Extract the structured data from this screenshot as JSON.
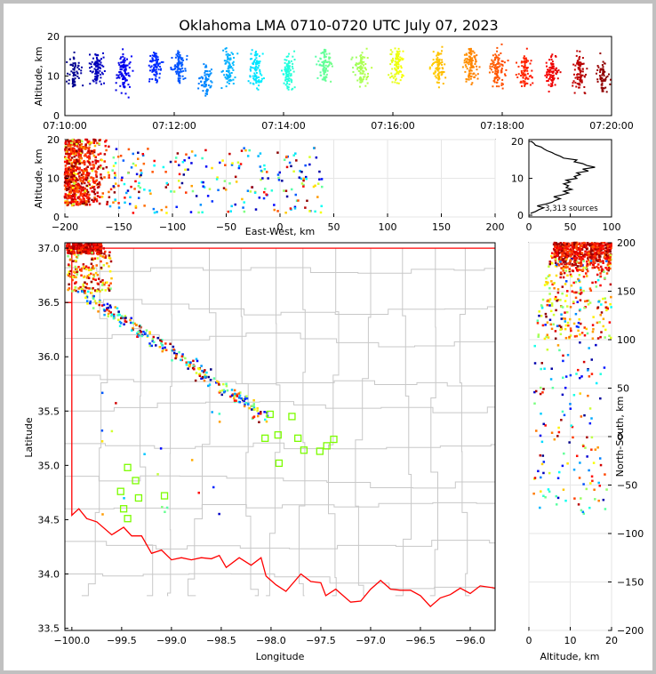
{
  "title": "Oklahoma LMA 0710-0720 UTC July 07, 2023",
  "colors": {
    "frame": "#c0c0c0",
    "background": "#ffffff",
    "border": "#ff0000",
    "counties": "#c8c8c8",
    "stations": "#7cfc00",
    "profile": "#000000"
  },
  "chart_data": [
    {
      "name": "altitude-vs-time",
      "type": "scatter",
      "xlim": [
        "07:10:00",
        "07:20:00"
      ],
      "xticks": [
        "07:10:00",
        "07:12:00",
        "07:14:00",
        "07:16:00",
        "07:18:00",
        "07:20:00"
      ],
      "ylim": [
        0,
        20
      ],
      "yticks": [
        "0",
        "10",
        "20"
      ],
      "ylabel": "Altitude, km",
      "colormap": "jet (by time)",
      "flashes": [
        {
          "t": "07:10:10",
          "alt": 11,
          "spread": 6,
          "n": 40
        },
        {
          "t": "07:10:35",
          "alt": 12,
          "spread": 5,
          "n": 65
        },
        {
          "t": "07:11:05",
          "alt": 11,
          "spread": 6,
          "n": 75
        },
        {
          "t": "07:11:40",
          "alt": 12,
          "spread": 5,
          "n": 55
        },
        {
          "t": "07:12:05",
          "alt": 12,
          "spread": 6,
          "n": 60
        },
        {
          "t": "07:12:35",
          "alt": 9,
          "spread": 5,
          "n": 40
        },
        {
          "t": "07:13:00",
          "alt": 12,
          "spread": 7,
          "n": 55
        },
        {
          "t": "07:13:30",
          "alt": 12,
          "spread": 6,
          "n": 60
        },
        {
          "t": "07:14:05",
          "alt": 11,
          "spread": 6,
          "n": 60
        },
        {
          "t": "07:14:45",
          "alt": 13,
          "spread": 6,
          "n": 65
        },
        {
          "t": "07:15:25",
          "alt": 12,
          "spread": 6,
          "n": 60
        },
        {
          "t": "07:16:05",
          "alt": 13,
          "spread": 6,
          "n": 70
        },
        {
          "t": "07:16:50",
          "alt": 12,
          "spread": 6,
          "n": 60
        },
        {
          "t": "07:17:25",
          "alt": 13,
          "spread": 6,
          "n": 80
        },
        {
          "t": "07:17:55",
          "alt": 12,
          "spread": 7,
          "n": 75
        },
        {
          "t": "07:18:25",
          "alt": 11,
          "spread": 6,
          "n": 55
        },
        {
          "t": "07:18:55",
          "alt": 11,
          "spread": 6,
          "n": 60
        },
        {
          "t": "07:19:25",
          "alt": 11,
          "spread": 6,
          "n": 60
        },
        {
          "t": "07:19:50",
          "alt": 10,
          "spread": 6,
          "n": 40
        }
      ]
    },
    {
      "name": "altitude-vs-east-west",
      "type": "scatter",
      "xlim": [
        -200,
        200
      ],
      "xticks": [
        "−200",
        "−150",
        "−100",
        "−50",
        "0",
        "50",
        "100",
        "150",
        "200"
      ],
      "ylim": [
        0,
        20
      ],
      "yticks": [
        "0",
        "10",
        "20"
      ],
      "xlabel": "East-West, km",
      "ylabel": "Altitude, km"
    },
    {
      "name": "altitude-histogram",
      "type": "line",
      "xlim": [
        0,
        100
      ],
      "xticks": [
        "0",
        "50",
        "100"
      ],
      "ylim": [
        0,
        20
      ],
      "yticks": [
        "0",
        "10",
        "20"
      ],
      "annotation": "3,313 sources",
      "alt": [
        0.5,
        1,
        1.5,
        2,
        2.5,
        3,
        3.5,
        4,
        4.5,
        5,
        5.5,
        6,
        6.5,
        7,
        7.5,
        8,
        8.5,
        9,
        9.5,
        10,
        10.5,
        11,
        11.5,
        12,
        12.5,
        13,
        13.5,
        14,
        14.5,
        15,
        15.5,
        16,
        16.5,
        17,
        17.5,
        18,
        18.5,
        19,
        19.5,
        20
      ],
      "count": [
        2,
        8,
        12,
        18,
        10,
        20,
        28,
        32,
        38,
        30,
        40,
        48,
        42,
        52,
        45,
        48,
        42,
        50,
        45,
        58,
        55,
        62,
        58,
        72,
        65,
        80,
        70,
        65,
        55,
        58,
        42,
        38,
        32,
        28,
        22,
        18,
        15,
        8,
        6,
        3
      ]
    },
    {
      "name": "plan-view",
      "type": "scatter",
      "xlim": [
        -100.07,
        -95.75
      ],
      "xticks": [
        "−100.0",
        "−99.5",
        "−99.0",
        "−98.5",
        "−98.0",
        "−97.5",
        "−97.0",
        "−96.5",
        "−96.0"
      ],
      "ylim": [
        33.48,
        37.05
      ],
      "yticks": [
        "33.5",
        "34.0",
        "34.5",
        "35.0",
        "35.5",
        "36.0",
        "36.5",
        "37.0"
      ],
      "xlabel": "Longitude",
      "ylabel": "Latitude",
      "stations": [
        {
          "lon": -98.06,
          "lat": 35.25
        },
        {
          "lon": -98.01,
          "lat": 35.47
        },
        {
          "lon": -97.79,
          "lat": 35.45
        },
        {
          "lon": -97.93,
          "lat": 35.28
        },
        {
          "lon": -97.73,
          "lat": 35.25
        },
        {
          "lon": -97.37,
          "lat": 35.24
        },
        {
          "lon": -97.44,
          "lat": 35.18
        },
        {
          "lon": -97.51,
          "lat": 35.13
        },
        {
          "lon": -97.67,
          "lat": 35.14
        },
        {
          "lon": -97.92,
          "lat": 35.02
        },
        {
          "lon": -99.44,
          "lat": 34.98
        },
        {
          "lon": -99.36,
          "lat": 34.86
        },
        {
          "lon": -99.51,
          "lat": 34.76
        },
        {
          "lon": -99.33,
          "lat": 34.7
        },
        {
          "lon": -99.07,
          "lat": 34.72
        },
        {
          "lon": -99.48,
          "lat": 34.6
        },
        {
          "lon": -99.44,
          "lat": 34.51
        }
      ]
    },
    {
      "name": "north-south-vs-altitude",
      "type": "scatter",
      "xlim": [
        0,
        20
      ],
      "xticks": [
        "0",
        "10",
        "20"
      ],
      "ylim": [
        -200,
        200
      ],
      "yticks": [
        "−200",
        "−150",
        "−100",
        "−50",
        "0",
        "50",
        "100",
        "150",
        "200"
      ],
      "xlabel": "Altitude, km",
      "ylabel": "North-South, km"
    }
  ]
}
